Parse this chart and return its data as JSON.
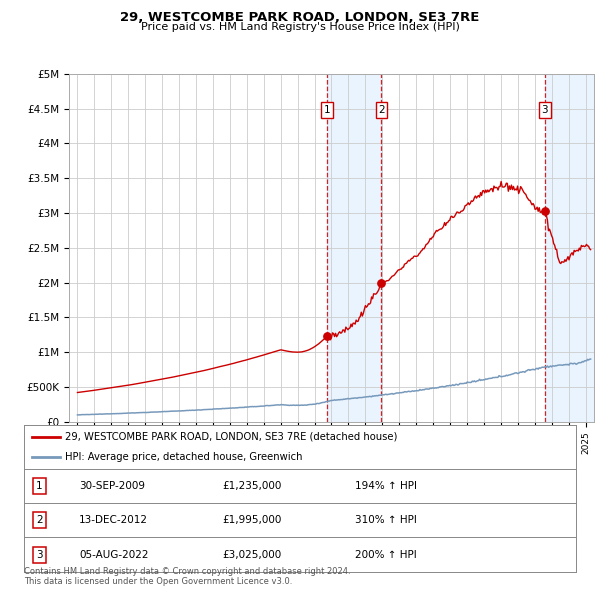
{
  "title": "29, WESTCOMBE PARK ROAD, LONDON, SE3 7RE",
  "subtitle": "Price paid vs. HM Land Registry's House Price Index (HPI)",
  "red_label": "29, WESTCOMBE PARK ROAD, LONDON, SE3 7RE (detached house)",
  "blue_label": "HPI: Average price, detached house, Greenwich",
  "transactions": [
    {
      "num": 1,
      "date": "30-SEP-2009",
      "price": 1235000,
      "pct": "194%",
      "x": 2009.75
    },
    {
      "num": 2,
      "date": "13-DEC-2012",
      "price": 1995000,
      "pct": "310%",
      "x": 2012.95
    },
    {
      "num": 3,
      "date": "05-AUG-2022",
      "price": 3025000,
      "pct": "200%",
      "x": 2022.6
    }
  ],
  "footer1": "Contains HM Land Registry data © Crown copyright and database right 2024.",
  "footer2": "This data is licensed under the Open Government Licence v3.0.",
  "ylim": [
    0,
    5000000
  ],
  "xlim": [
    1994.5,
    2025.5
  ],
  "background_color": "#ffffff",
  "plot_bg": "#ffffff",
  "grid_color": "#cccccc",
  "red_color": "#cc0000",
  "blue_color": "#7799bb",
  "shade_color": "#ddeeff"
}
